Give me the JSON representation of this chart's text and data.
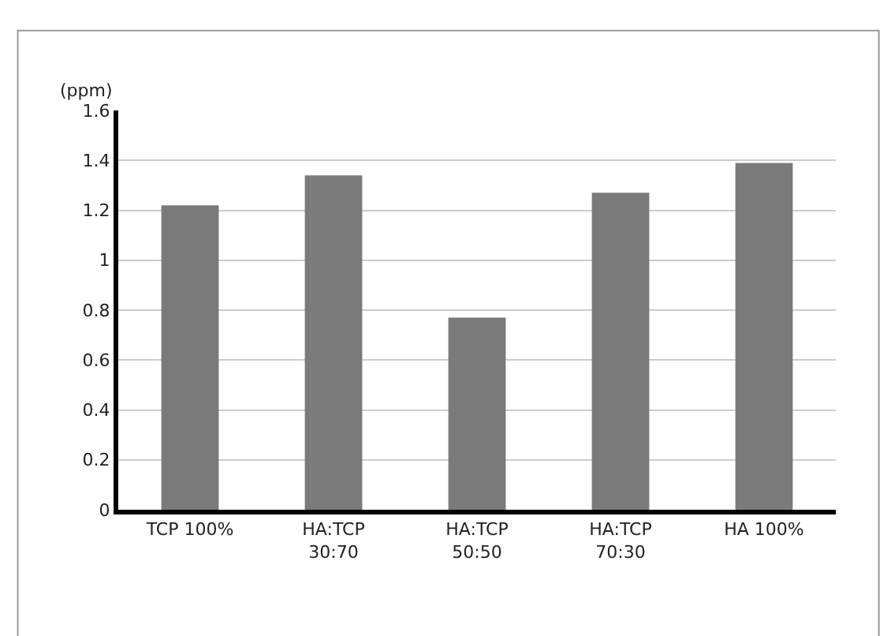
{
  "chart_data": {
    "type": "bar",
    "ylabel": "(ppm)",
    "categories": [
      "TCP 100%",
      "HA:TCP\n30:70",
      "HA:TCP\n50:50",
      "HA:TCP\n70:30",
      "HA 100%"
    ],
    "values": [
      1.22,
      1.34,
      0.77,
      1.27,
      1.39
    ],
    "color": "#7a7a7a",
    "ylim": [
      0,
      1.6
    ],
    "yticks": [
      0,
      0.2,
      0.4,
      0.6,
      0.8,
      1,
      1.2,
      1.4,
      1.6
    ],
    "grid": "y"
  }
}
